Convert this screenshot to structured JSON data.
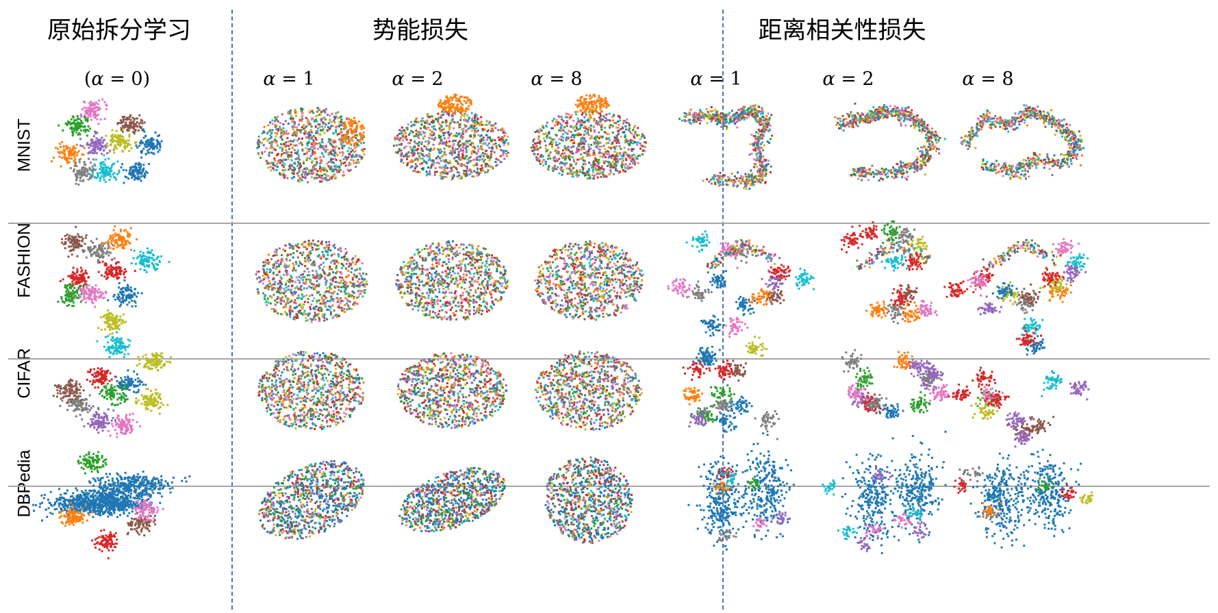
{
  "headers": {
    "original": "原始拆分学习",
    "potential": "势能损失",
    "distcorr": "距离相关性损失"
  },
  "alpha_labels": [
    {
      "sym": "α",
      "rest": " = 0",
      "open": "(",
      "close": ")"
    },
    {
      "sym": "α",
      "rest": " = 1",
      "open": "",
      "close": ""
    },
    {
      "sym": "α",
      "rest": " = 2",
      "open": "",
      "close": ""
    },
    {
      "sym": "α",
      "rest": " = 8",
      "open": "",
      "close": ""
    },
    {
      "sym": "α",
      "rest": " = 1",
      "open": "",
      "close": ""
    },
    {
      "sym": "α",
      "rest": " = 2",
      "open": "",
      "close": ""
    },
    {
      "sym": "α",
      "rest": " = 8",
      "open": "",
      "close": ""
    }
  ],
  "rows": [
    "MNIST",
    "FASHION",
    "CIFAR",
    "DBPedia"
  ],
  "colors": {
    "class_palette": [
      "#1f77b4",
      "#ff7f0e",
      "#2ca02c",
      "#d62728",
      "#9467bd",
      "#8c564b",
      "#e377c2",
      "#7f7f7f",
      "#bcbd22",
      "#17becf"
    ],
    "separator_dashed": "#4472c4",
    "separator_solid": "#a6a6a6"
  }
}
